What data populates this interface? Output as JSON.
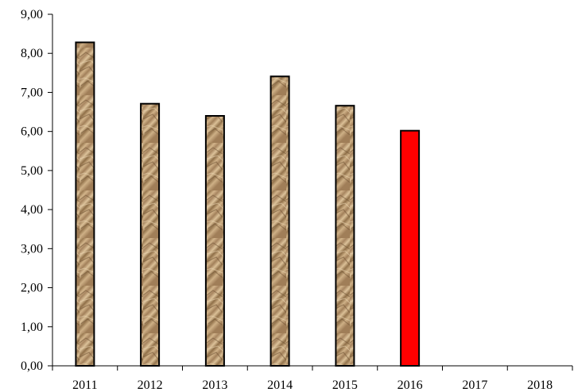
{
  "chart_data": {
    "type": "bar",
    "categories": [
      "2011",
      "2012",
      "2013",
      "2014",
      "2015",
      "2016",
      "2017",
      "2018"
    ],
    "values": [
      8.28,
      6.71,
      6.4,
      7.41,
      6.66,
      6.02,
      null,
      null
    ],
    "ylim": [
      0,
      9
    ],
    "yticks": [
      "0,00",
      "1,00",
      "2,00",
      "3,00",
      "4,00",
      "5,00",
      "6,00",
      "7,00",
      "8,00",
      "9,00"
    ],
    "grid": false,
    "title": "",
    "xlabel": "",
    "ylabel": "",
    "colors": {
      "bar_texture": "#b89a72",
      "bar_highlight": "#ff0000",
      "highlight_category": "2016",
      "axis": "#000000"
    }
  }
}
